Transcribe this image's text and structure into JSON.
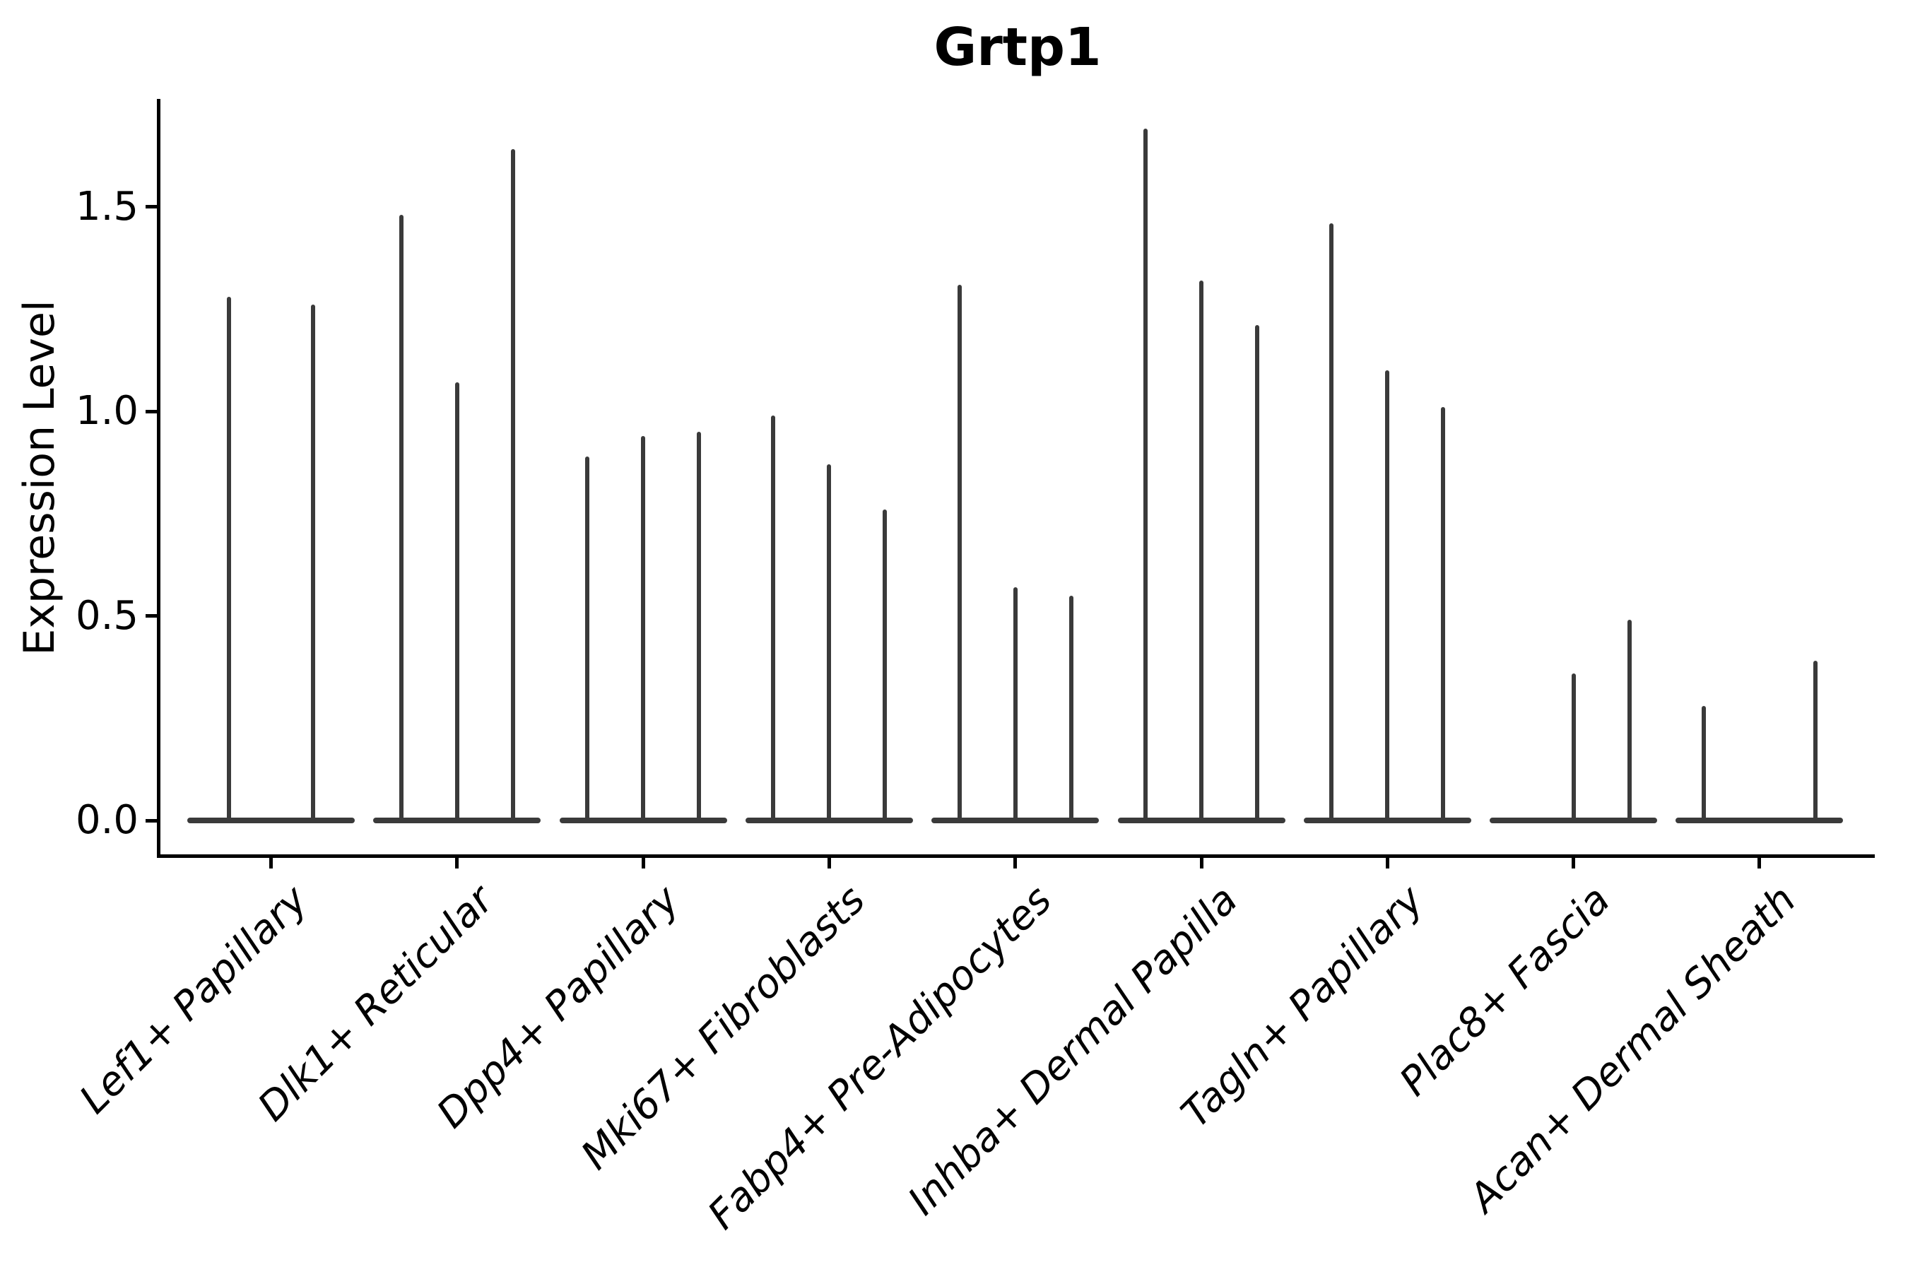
{
  "title": "Grtp1",
  "y_axis": {
    "label": "Expression Level",
    "tick_labels": [
      "0.0",
      "0.5",
      "1.0",
      "1.5"
    ]
  },
  "chart_data": {
    "type": "violin",
    "title": "Grtp1",
    "ylabel": "Expression Level",
    "xlabel": "",
    "ylim": [
      0,
      1.76
    ],
    "yticks": [
      0.0,
      0.5,
      1.0,
      1.5
    ],
    "grid": false,
    "legend": "none",
    "x_tick_rotation": 45,
    "x_tick_style": "italic",
    "colors": {
      "violin": "#3a3a3a",
      "axis": "#000000",
      "background": "#ffffff"
    },
    "description": "Single-cell expression violin plot. Each category shows needle-shaped violins: density mass flat at 0 with a thin spike rising to the maximum expression value. null means that violin is completely flat at zero (no spike).",
    "categories": [
      "Lef1+ Papillary",
      "Dlk1+ Reticular",
      "Dpp4+ Papillary",
      "Mki67+ Fibroblasts",
      "Fabp4+ Pre-Adipocytes",
      "Inhba+ Dermal Papilla",
      "Tagln+ Papillary",
      "Plac8+ Fascia",
      "Acan+ Dermal Sheath"
    ],
    "groups": [
      {
        "category": "Lef1+ Papillary",
        "violins": [
          1.28,
          1.26
        ]
      },
      {
        "category": "Dlk1+ Reticular",
        "violins": [
          1.48,
          1.07,
          1.64
        ]
      },
      {
        "category": "Dpp4+ Papillary",
        "violins": [
          0.89,
          0.94,
          0.95
        ]
      },
      {
        "category": "Mki67+ Fibroblasts",
        "violins": [
          0.99,
          0.87,
          0.76
        ]
      },
      {
        "category": "Fabp4+ Pre-Adipocytes",
        "violins": [
          1.31,
          0.57,
          0.55
        ]
      },
      {
        "category": "Inhba+ Dermal Papilla",
        "violins": [
          1.69,
          1.32,
          1.21
        ]
      },
      {
        "category": "Tagln+ Papillary",
        "violins": [
          1.46,
          1.1,
          1.01
        ]
      },
      {
        "category": "Plac8+ Fascia",
        "violins": [
          null,
          0.36,
          0.49
        ]
      },
      {
        "category": "Acan+ Dermal Sheath",
        "violins": [
          0.28,
          null,
          0.39
        ]
      }
    ]
  }
}
